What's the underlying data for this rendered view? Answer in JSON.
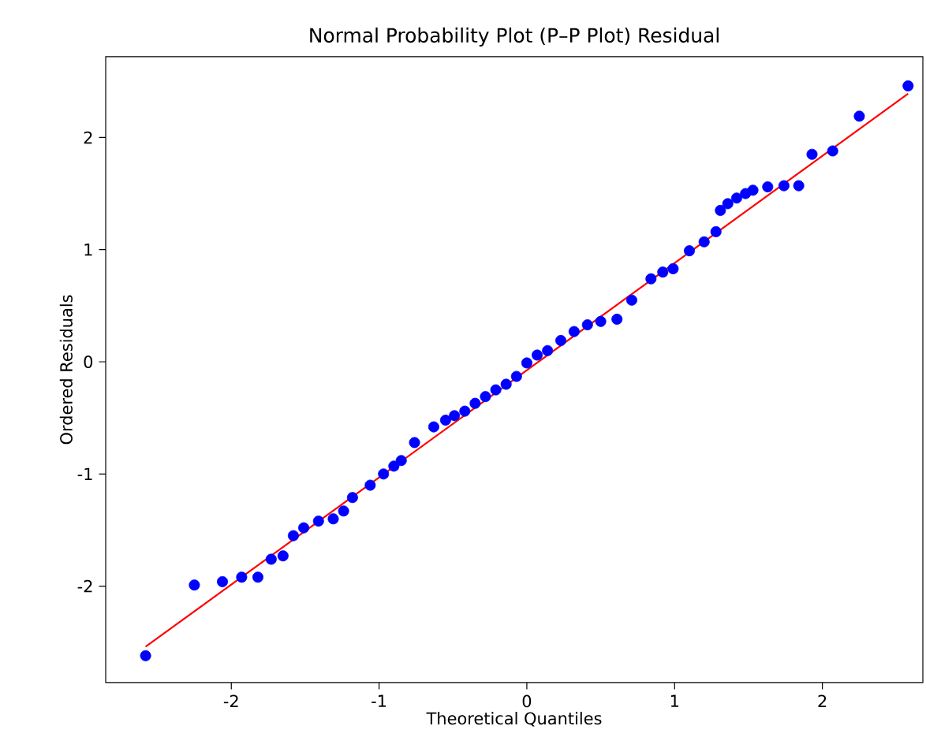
{
  "chart_data": {
    "type": "scatter",
    "title": "Normal Probability Plot (P–P Plot) Residual",
    "xlabel": "Theoretical Quantiles",
    "ylabel": "Ordered Residuals",
    "xlim": [
      -2.85,
      2.68
    ],
    "ylim": [
      -2.86,
      2.72
    ],
    "xticks": [
      -2,
      -1,
      0,
      1,
      2
    ],
    "yticks": [
      -2,
      -1,
      0,
      1,
      2
    ],
    "grid": false,
    "series": [
      {
        "marker": "circle",
        "color": "#0000ff",
        "x": [
          -2.58,
          -2.25,
          -2.06,
          -1.93,
          -1.82,
          -1.73,
          -1.65,
          -1.58,
          -1.51,
          -1.41,
          -1.31,
          -1.24,
          -1.18,
          -1.06,
          -0.97,
          -0.9,
          -0.85,
          -0.76,
          -0.63,
          -0.55,
          -0.49,
          -0.42,
          -0.35,
          -0.28,
          -0.21,
          -0.14,
          -0.07,
          0.0,
          0.07,
          0.14,
          0.23,
          0.32,
          0.41,
          0.5,
          0.61,
          0.71,
          0.84,
          0.92,
          0.99,
          1.1,
          1.2,
          1.28,
          1.31,
          1.36,
          1.42,
          1.48,
          1.53,
          1.63,
          1.74,
          1.84,
          1.93,
          2.07,
          2.25,
          2.58
        ],
        "values": [
          -2.62,
          -1.99,
          -1.96,
          -1.92,
          -1.92,
          -1.76,
          -1.73,
          -1.55,
          -1.48,
          -1.42,
          -1.4,
          -1.33,
          -1.21,
          -1.1,
          -1.0,
          -0.93,
          -0.88,
          -0.72,
          -0.58,
          -0.52,
          -0.48,
          -0.44,
          -0.37,
          -0.31,
          -0.25,
          -0.2,
          -0.13,
          -0.01,
          0.06,
          0.1,
          0.19,
          0.27,
          0.33,
          0.36,
          0.38,
          0.55,
          0.74,
          0.8,
          0.83,
          0.99,
          1.07,
          1.16,
          1.35,
          1.41,
          1.46,
          1.5,
          1.53,
          1.56,
          1.57,
          1.57,
          1.85,
          1.88,
          2.19,
          2.46
        ]
      },
      {
        "type": "line",
        "color": "#ff0000",
        "x": [
          -2.58,
          2.58
        ],
        "values": [
          -2.54,
          2.39
        ]
      }
    ]
  }
}
